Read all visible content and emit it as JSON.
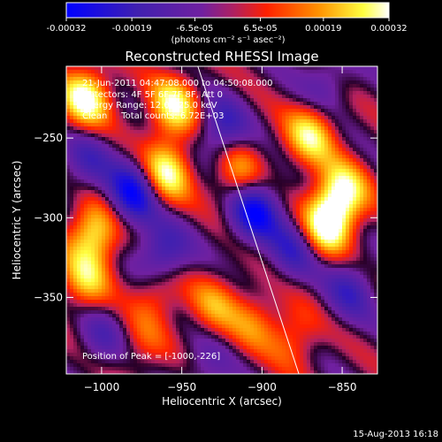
{
  "colorbar": {
    "tick_labels": [
      "-0.00032",
      "-0.00019",
      "-6.5e-05",
      "6.5e-05",
      "0.00019",
      "0.00032"
    ],
    "tick_values": [
      -0.00032,
      -0.00019,
      -6.5e-05,
      6.5e-05,
      0.00019,
      0.00032
    ],
    "range": [
      -0.00032,
      0.00032
    ],
    "units": "(photons cm⁻² s⁻¹ asec⁻²)"
  },
  "chart_data": {
    "type": "heatmap",
    "title": "Reconstructed RHESSI Image",
    "xlabel": "Heliocentric X (arcsec)",
    "ylabel": "Heliocentric Y (arcsec)",
    "xlim": [
      -1022,
      -828
    ],
    "ylim": [
      -398,
      -205
    ],
    "x_ticks": [
      -1000,
      -950,
      -900,
      -850
    ],
    "y_ticks": [
      -250,
      -300,
      -350
    ],
    "x_tick_labels": [
      "−1000",
      "−950",
      "−900",
      "−850"
    ],
    "y_tick_labels": [
      "−250",
      "−300",
      "−350"
    ],
    "colormap": [
      "#0000ff",
      "#4020b0",
      "#7020a0",
      "#b02060",
      "#ff2000",
      "#ff9000",
      "#ffff40",
      "#ffffff"
    ],
    "annotations": [
      "21-Jun-2011 04:47:08.000 to 04:50:08.000",
      "Detectors: 4F 5F 6F 7F 8F, Att 0",
      "Energy Range: 12.0 - 25.0 keV",
      "Clean     Total counts: 6.72E+03"
    ],
    "peak_label": "Position of Peak = [-1000,-226]",
    "peak": [
      -1000,
      -226
    ],
    "limb_line": [
      [
        -940,
        -205
      ],
      [
        -877,
        -398
      ]
    ],
    "blobs": [
      {
        "x": -1010,
        "y": -225,
        "v": 0.00032
      },
      {
        "x": -955,
        "y": -230,
        "v": 0.00028
      },
      {
        "x": -960,
        "y": -272,
        "v": 0.0003
      },
      {
        "x": -915,
        "y": -272,
        "v": 0.0002
      },
      {
        "x": -870,
        "y": -248,
        "v": 0.00026
      },
      {
        "x": -850,
        "y": -285,
        "v": 0.0003
      },
      {
        "x": -860,
        "y": -305,
        "v": 0.00032
      },
      {
        "x": -1005,
        "y": -310,
        "v": 0.00028
      },
      {
        "x": -1010,
        "y": -340,
        "v": 0.0002
      },
      {
        "x": -965,
        "y": -345,
        "v": 0.00018
      },
      {
        "x": -930,
        "y": -355,
        "v": 0.00016
      },
      {
        "x": -905,
        "y": -365,
        "v": 0.00014
      },
      {
        "x": -880,
        "y": -375,
        "v": 0.00014
      },
      {
        "x": -975,
        "y": -380,
        "v": 0.0001
      },
      {
        "x": -980,
        "y": -285,
        "v": -0.0003
      },
      {
        "x": -905,
        "y": -295,
        "v": -0.0003
      },
      {
        "x": -962,
        "y": -325,
        "v": -0.00025
      },
      {
        "x": -925,
        "y": -245,
        "v": -0.0002
      },
      {
        "x": -880,
        "y": -320,
        "v": -0.00018
      },
      {
        "x": -1010,
        "y": -265,
        "v": -0.00015
      },
      {
        "x": -1000,
        "y": -375,
        "v": -0.00012
      },
      {
        "x": -845,
        "y": -345,
        "v": -0.00016
      },
      {
        "x": -935,
        "y": -395,
        "v": -0.0001
      },
      {
        "x": -860,
        "y": -215,
        "v": -0.00012
      }
    ]
  },
  "footer": {
    "timestamp": "15-Aug-2013 16:18"
  }
}
